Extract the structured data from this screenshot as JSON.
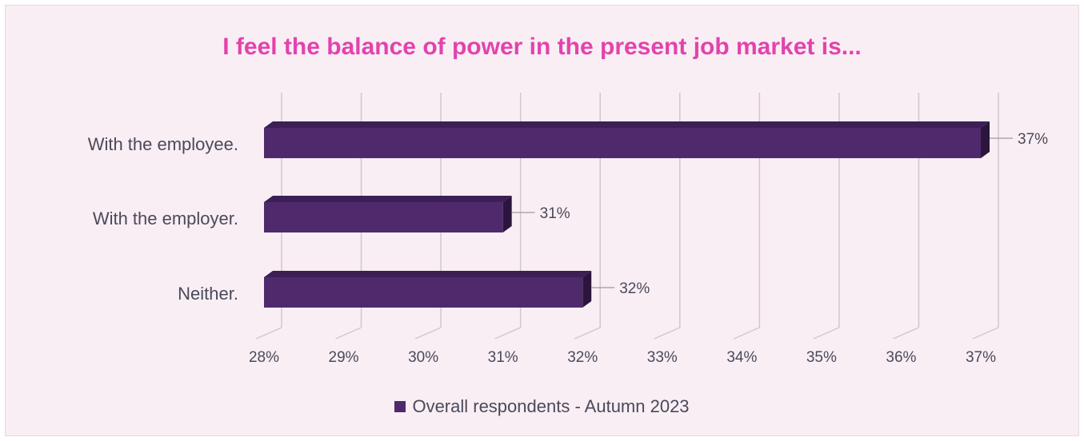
{
  "chart_data": {
    "type": "bar",
    "orientation": "horizontal",
    "title": "I feel the balance of power in the present job market is...",
    "categories": [
      "With the employee.",
      "With the employer.",
      "Neither."
    ],
    "series": [
      {
        "name": "Overall respondents - Autumn 2023",
        "values": [
          37,
          31,
          32
        ],
        "labels": [
          "37%",
          "31%",
          "32%"
        ]
      }
    ],
    "x_ticks": [
      "28%",
      "29%",
      "30%",
      "31%",
      "32%",
      "33%",
      "34%",
      "35%",
      "36%",
      "37%"
    ],
    "xlim": [
      28,
      37
    ],
    "grid": "vertical",
    "legend_position": "bottom",
    "colors": {
      "bar_front": "#4e2a6d",
      "bar_top": "#3c1f55",
      "bar_side": "#2b153d",
      "title": "#e243ad",
      "text": "#4a4a5a",
      "grid": "#cfc8cf",
      "background": "#f9eef4"
    }
  }
}
